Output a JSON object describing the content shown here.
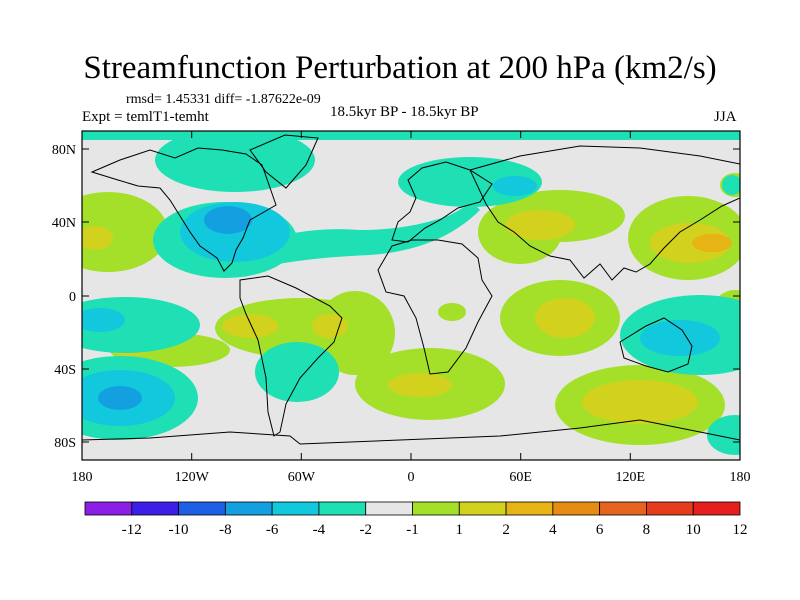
{
  "title": "Streamfunction Perturbation at 200 hPa (km2/s)",
  "rmsd_line": "rmsd= 1.45331 diff= -1.87622e-09",
  "expt_line": "Expt = temlT1-temht",
  "center_label": "18.5kyr BP - 18.5kyr BP",
  "season": "JJA",
  "map": {
    "lon_range": [
      -180,
      180
    ],
    "lat_range": [
      -90,
      90
    ],
    "lat_ticks": [
      "80N",
      "40N",
      "0",
      "40S",
      "80S"
    ],
    "lon_ticks": [
      "180",
      "120W",
      "60W",
      "0",
      "60E",
      "120E",
      "180"
    ]
  },
  "colorbar": {
    "colors": [
      "#8b1fe6",
      "#3c1ee6",
      "#1e5fe6",
      "#14a0e0",
      "#12c8dc",
      "#1ee0b4",
      "#e6e6e6",
      "#a4e02a",
      "#d2d21e",
      "#e6b414",
      "#e68c14",
      "#e6641e",
      "#e63c1e",
      "#e61e1e"
    ],
    "labels": [
      "-12",
      "-10",
      "-8",
      "-6",
      "-4",
      "-2",
      "-1",
      "1",
      "2",
      "4",
      "6",
      "8",
      "10",
      "12"
    ]
  }
}
